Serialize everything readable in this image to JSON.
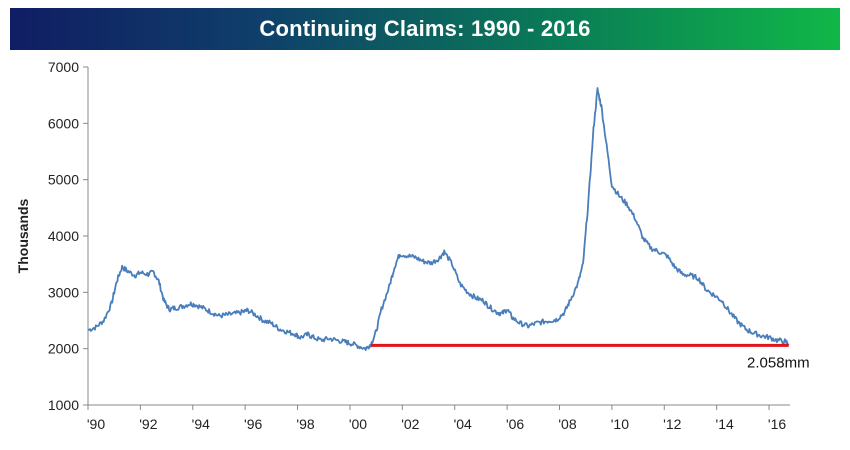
{
  "chart_data": {
    "type": "line",
    "title": "Continuing Claims: 1990 - 2016",
    "xlabel": "",
    "ylabel": "Thousands",
    "ylim": [
      1000,
      7000
    ],
    "xlim": [
      1990,
      2016.8
    ],
    "y_ticks": [
      1000,
      2000,
      3000,
      4000,
      5000,
      6000,
      7000
    ],
    "x_tick_labels": [
      "'90",
      "'92",
      "'94",
      "'96",
      "'98",
      "'00",
      "'02",
      "'04",
      "'06",
      "'08",
      "'10",
      "'12",
      "'14",
      "'16"
    ],
    "x_tick_values": [
      1990,
      1992,
      1994,
      1996,
      1998,
      2000,
      2002,
      2004,
      2006,
      2008,
      2010,
      2012,
      2014,
      2016
    ],
    "grid": false,
    "legend": "none",
    "series": [
      {
        "color": "#4a7ebb",
        "points": [
          [
            1990.0,
            2330
          ],
          [
            1990.3,
            2380
          ],
          [
            1990.6,
            2500
          ],
          [
            1990.9,
            2800
          ],
          [
            1991.1,
            3200
          ],
          [
            1991.3,
            3450
          ],
          [
            1991.5,
            3380
          ],
          [
            1991.8,
            3300
          ],
          [
            1992.0,
            3350
          ],
          [
            1992.3,
            3320
          ],
          [
            1992.5,
            3360
          ],
          [
            1992.7,
            3200
          ],
          [
            1992.9,
            2850
          ],
          [
            1993.1,
            2700
          ],
          [
            1993.3,
            2720
          ],
          [
            1993.6,
            2750
          ],
          [
            1993.9,
            2800
          ],
          [
            1994.1,
            2780
          ],
          [
            1994.4,
            2720
          ],
          [
            1994.7,
            2650
          ],
          [
            1995.0,
            2580
          ],
          [
            1995.3,
            2600
          ],
          [
            1995.6,
            2620
          ],
          [
            1995.9,
            2650
          ],
          [
            1996.1,
            2680
          ],
          [
            1996.4,
            2600
          ],
          [
            1996.7,
            2500
          ],
          [
            1997.0,
            2450
          ],
          [
            1997.3,
            2350
          ],
          [
            1997.6,
            2300
          ],
          [
            1997.9,
            2260
          ],
          [
            1998.1,
            2200
          ],
          [
            1998.4,
            2250
          ],
          [
            1998.6,
            2200
          ],
          [
            1998.9,
            2150
          ],
          [
            1999.2,
            2180
          ],
          [
            1999.5,
            2150
          ],
          [
            1999.8,
            2120
          ],
          [
            2000.0,
            2100
          ],
          [
            2000.3,
            2050
          ],
          [
            2000.6,
            2000
          ],
          [
            2000.8,
            2080
          ],
          [
            2001.0,
            2300
          ],
          [
            2001.2,
            2700
          ],
          [
            2001.5,
            3100
          ],
          [
            2001.7,
            3450
          ],
          [
            2001.9,
            3680
          ],
          [
            2002.2,
            3650
          ],
          [
            2002.5,
            3620
          ],
          [
            2002.8,
            3550
          ],
          [
            2003.1,
            3520
          ],
          [
            2003.4,
            3600
          ],
          [
            2003.6,
            3720
          ],
          [
            2003.9,
            3500
          ],
          [
            2004.2,
            3150
          ],
          [
            2004.5,
            3000
          ],
          [
            2004.8,
            2900
          ],
          [
            2005.1,
            2850
          ],
          [
            2005.3,
            2750
          ],
          [
            2005.6,
            2650
          ],
          [
            2005.8,
            2620
          ],
          [
            2006.0,
            2700
          ],
          [
            2006.2,
            2550
          ],
          [
            2006.5,
            2450
          ],
          [
            2006.8,
            2400
          ],
          [
            2007.1,
            2450
          ],
          [
            2007.4,
            2480
          ],
          [
            2007.7,
            2500
          ],
          [
            2007.9,
            2520
          ],
          [
            2008.2,
            2650
          ],
          [
            2008.4,
            2850
          ],
          [
            2008.7,
            3150
          ],
          [
            2008.9,
            3500
          ],
          [
            2009.1,
            4600
          ],
          [
            2009.3,
            5900
          ],
          [
            2009.45,
            6600
          ],
          [
            2009.6,
            6300
          ],
          [
            2009.8,
            5600
          ],
          [
            2010.0,
            4900
          ],
          [
            2010.3,
            4700
          ],
          [
            2010.6,
            4550
          ],
          [
            2010.9,
            4300
          ],
          [
            2011.2,
            3950
          ],
          [
            2011.5,
            3780
          ],
          [
            2011.8,
            3720
          ],
          [
            2012.1,
            3650
          ],
          [
            2012.4,
            3450
          ],
          [
            2012.7,
            3320
          ],
          [
            2013.0,
            3300
          ],
          [
            2013.3,
            3250
          ],
          [
            2013.6,
            3050
          ],
          [
            2013.9,
            2950
          ],
          [
            2014.2,
            2850
          ],
          [
            2014.5,
            2650
          ],
          [
            2014.8,
            2480
          ],
          [
            2015.1,
            2350
          ],
          [
            2015.4,
            2280
          ],
          [
            2015.7,
            2230
          ],
          [
            2016.0,
            2200
          ],
          [
            2016.3,
            2150
          ],
          [
            2016.6,
            2130
          ],
          [
            2016.75,
            2090
          ]
        ]
      }
    ],
    "reference_line": {
      "color": "#e2141b",
      "y": 2058,
      "x_start": 2000.8,
      "x_end": 2016.75
    },
    "annotations": [
      {
        "text": "2.058mm",
        "x": 2016.0,
        "y": 2058
      }
    ]
  }
}
